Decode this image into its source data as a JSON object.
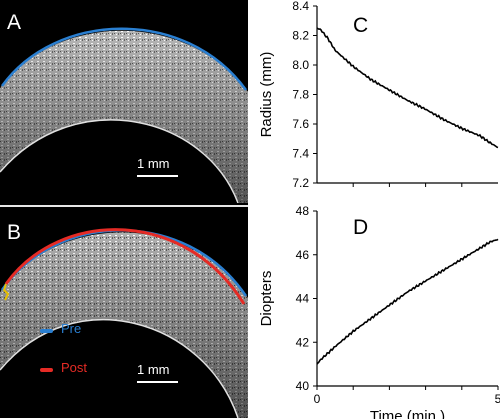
{
  "panels": {
    "A": {
      "letter": "A",
      "scale_label": "1 mm"
    },
    "B": {
      "letter": "B",
      "scale_label": "1 mm",
      "legend": [
        {
          "label": "Pre",
          "color": "#2a7fd1"
        },
        {
          "label": "Post",
          "color": "#e52b25"
        }
      ]
    }
  },
  "colors": {
    "pre": "#2a7fd1",
    "post": "#e52b25",
    "curve": "#000000"
  },
  "chart_data": [
    {
      "panel": "C",
      "type": "line",
      "title": "",
      "xlabel": "",
      "ylabel": "Radius (mm)",
      "xlim": [
        0,
        5
      ],
      "ylim": [
        7.2,
        8.4
      ],
      "yticks": [
        "7.2",
        "7.4",
        "7.6",
        "7.8",
        "8.0",
        "8.2",
        "8.4"
      ],
      "xticks": [],
      "series": [
        {
          "x": [
            0,
            0.1,
            0.3,
            0.5,
            1.0,
            1.5,
            2.0,
            2.5,
            3.0,
            3.5,
            4.0,
            4.5,
            4.8,
            5.0
          ],
          "values": [
            8.25,
            8.24,
            8.18,
            8.1,
            7.99,
            7.9,
            7.83,
            7.76,
            7.7,
            7.63,
            7.57,
            7.52,
            7.47,
            7.44
          ]
        }
      ]
    },
    {
      "panel": "D",
      "type": "line",
      "title": "",
      "xlabel": "Time (min.)",
      "ylabel": "Diopters",
      "xlim": [
        0,
        5
      ],
      "ylim": [
        40,
        48
      ],
      "yticks": [
        "40",
        "42",
        "44",
        "46",
        "48"
      ],
      "xticks": [
        "0",
        "5"
      ],
      "series": [
        {
          "x": [
            0,
            0.1,
            0.3,
            0.5,
            1.0,
            1.5,
            2.0,
            2.5,
            3.0,
            3.5,
            4.0,
            4.5,
            4.8,
            5.0
          ],
          "values": [
            41.0,
            41.2,
            41.5,
            41.8,
            42.5,
            43.1,
            43.7,
            44.3,
            44.8,
            45.3,
            45.8,
            46.3,
            46.6,
            46.7
          ]
        }
      ]
    }
  ]
}
